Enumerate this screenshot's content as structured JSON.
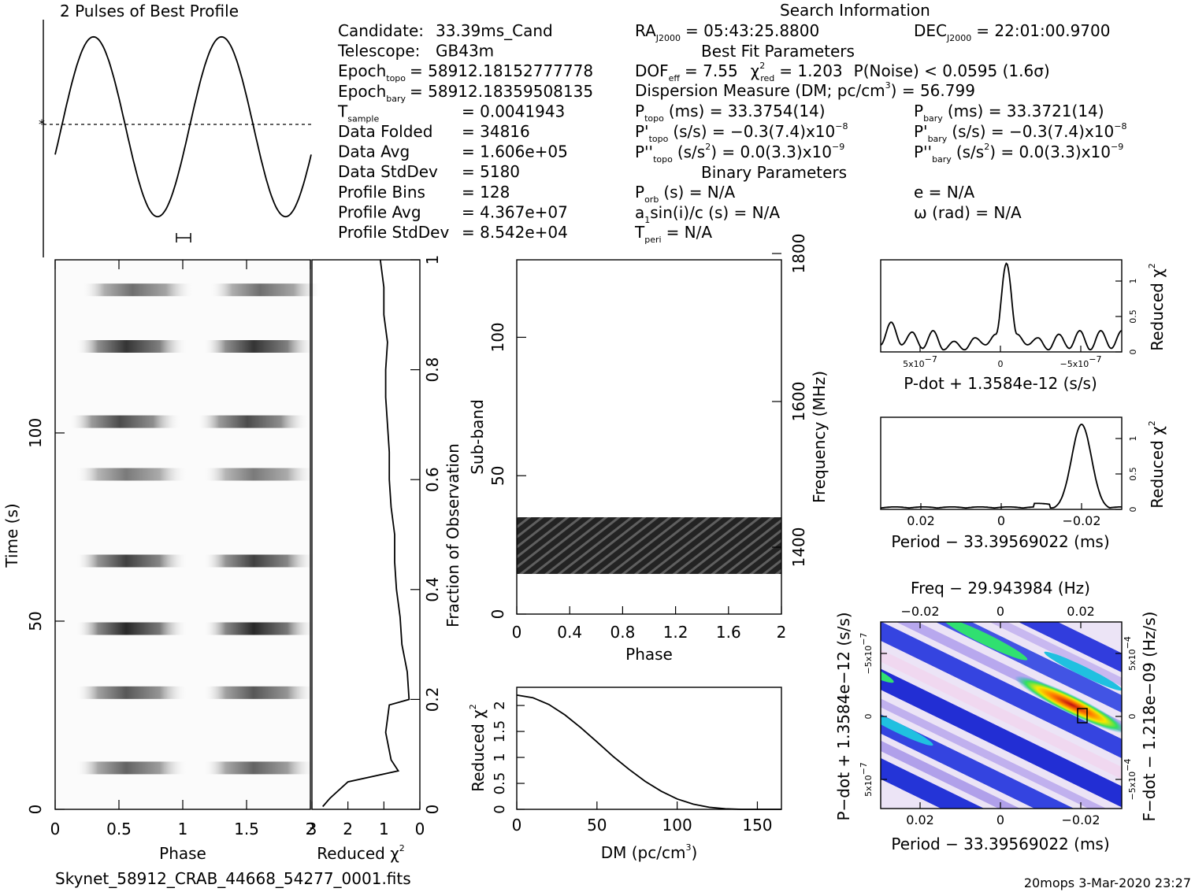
{
  "header": {
    "profile_title": "2 Pulses of Best Profile",
    "search_title": "Search Information",
    "best_fit_title": "Best Fit Parameters",
    "binary_title": "Binary Parameters",
    "filename": "Skynet_58912_CRAB_44668_54277_0001.fits",
    "footer": "20mops   3-Mar-2020 23:27"
  },
  "info_left": [
    {
      "label": "Candidate:",
      "value": "33.39ms_Cand"
    },
    {
      "label": "Telescope:",
      "value": "GB43m"
    },
    {
      "label": "Epoch",
      "sub": "topo",
      "value": "= 58912.18152777778"
    },
    {
      "label": "Epoch",
      "sub": "bary",
      "value": "= 58912.18359508135"
    },
    {
      "label": "T",
      "sub": "sample",
      "value": "=   0.0041943"
    },
    {
      "label": "Data Folded",
      "value": "=   34816"
    },
    {
      "label": "Data Avg",
      "value": "=   1.606e+05"
    },
    {
      "label": "Data StdDev",
      "value": "=   5180"
    },
    {
      "label": "Profile Bins",
      "value": "=   128"
    },
    {
      "label": "Profile Avg",
      "value": "=   4.367e+07"
    },
    {
      "label": "Profile StdDev",
      "value": "=   8.542e+04"
    }
  ],
  "info_mid": {
    "ra": {
      "label": "RA",
      "sub": "J2000",
      "value": "= 05:43:25.8800"
    },
    "dof": {
      "label": "DOF",
      "sub": "eff",
      "value": "= 7.55"
    },
    "chi": {
      "label": "χ",
      "sup": "2",
      "sub": "red",
      "value": "= 1.203"
    },
    "pnoise": "P(Noise) < 0.0595   (1.6σ)",
    "dm_line": "Dispersion Measure (DM; pc/cm",
    "dm_sup": "3",
    "dm_value": ") = 56.799",
    "ptopo": {
      "label": "P",
      "sub": "topo",
      "value": "(ms) =  33.3754(14)"
    },
    "pdtopo": {
      "label": "P'",
      "sub": "topo",
      "value": "(s/s) = −0.3(7.4)x10",
      "exp": "−8"
    },
    "pddtopo": {
      "label": "P''",
      "sub": "topo",
      "value": "(s/s",
      "sup2": "2",
      "value2": ") = 0.0(3.3)x10",
      "exp": "−9"
    },
    "porb": {
      "label": "P",
      "sub": "orb",
      "value": "(s) = N/A"
    },
    "asini": {
      "label": "a",
      "sub": "1",
      "value": "sin(i)/c (s) = N/A"
    },
    "tperi": {
      "label": "T",
      "sub": "peri",
      "value": "= N/A"
    }
  },
  "info_right": {
    "dec": {
      "label": "DEC",
      "sub": "J2000",
      "value": "= 22:01:00.9700"
    },
    "pbary": {
      "label": "P",
      "sub": "bary",
      "value": "(ms) =  33.3721(14)"
    },
    "pdbary": {
      "label": "P'",
      "sub": "bary",
      "value": "(s/s) = −0.3(7.4)x10",
      "exp": "−8"
    },
    "pddbary": {
      "label": "P''",
      "sub": "bary",
      "value": "(s/s",
      "sup2": "2",
      "value2": ") = 0.0(3.3)x10",
      "exp": "−9"
    },
    "ecc": "e = N/A",
    "omega": "ω (rad) = N/A"
  },
  "chart_data": [
    {
      "id": "profile",
      "type": "line",
      "title": "2 Pulses of Best Profile",
      "x": [
        0,
        0.125,
        0.25,
        0.375,
        0.5,
        0.625,
        0.75,
        0.875,
        1.0,
        1.125,
        1.25,
        1.375,
        1.5,
        1.625,
        1.75,
        1.875,
        2.0
      ],
      "y": [
        0.78,
        0.95,
        1.0,
        0.91,
        0.6,
        0.28,
        0.07,
        0.02,
        0.29,
        0.78,
        0.97,
        0.92,
        0.61,
        0.26,
        0.06,
        0.07,
        0.58
      ],
      "baseline": 0.58
    },
    {
      "id": "time-phase",
      "type": "heatmap",
      "xlabel": "Phase",
      "ylabel": "Time (s)",
      "xticks": [
        "0",
        "0.5",
        "1",
        "1.5",
        "2"
      ],
      "yticks": [
        "0",
        "50",
        "100"
      ],
      "xlim": [
        0,
        2
      ],
      "ylim": [
        0,
        146
      ],
      "bands": [
        {
          "t": 138,
          "strength": 0.6,
          "phase": 0.65
        },
        {
          "t": 123,
          "strength": 0.85,
          "phase": 0.6
        },
        {
          "t": 103,
          "strength": 0.75,
          "phase": 0.55
        },
        {
          "t": 89,
          "strength": 0.55,
          "phase": 0.6
        },
        {
          "t": 66,
          "strength": 0.8,
          "phase": 0.6
        },
        {
          "t": 48,
          "strength": 0.9,
          "phase": 0.6
        },
        {
          "t": 31,
          "strength": 0.7,
          "phase": 0.6
        },
        {
          "t": 11,
          "strength": 0.65,
          "phase": 0.6
        }
      ]
    },
    {
      "id": "reduced-chi-time",
      "type": "line",
      "xlabel": "Reduced χ",
      "ylabel": "Fraction of Observation",
      "xticks": [
        "3",
        "2",
        "1",
        "0"
      ],
      "yticks": [
        "0",
        "0.2",
        "0.4",
        "0.6",
        "0.8",
        "1"
      ],
      "xlim": [
        3,
        0
      ],
      "ylim": [
        0,
        1
      ],
      "points": [
        [
          2.7,
          0.005
        ],
        [
          2.5,
          0.02
        ],
        [
          2.0,
          0.05
        ],
        [
          0.6,
          0.07
        ],
        [
          0.8,
          0.09
        ],
        [
          0.95,
          0.14
        ],
        [
          0.85,
          0.19
        ],
        [
          0.3,
          0.2
        ],
        [
          0.35,
          0.25
        ],
        [
          0.5,
          0.3
        ],
        [
          0.55,
          0.35
        ],
        [
          0.65,
          0.4
        ],
        [
          0.7,
          0.45
        ],
        [
          0.7,
          0.5
        ],
        [
          0.8,
          0.55
        ],
        [
          0.85,
          0.6
        ],
        [
          0.85,
          0.65
        ],
        [
          0.9,
          0.7
        ],
        [
          0.95,
          0.75
        ],
        [
          0.95,
          0.8
        ],
        [
          0.9,
          0.85
        ],
        [
          1.0,
          0.9
        ],
        [
          1.0,
          0.95
        ],
        [
          1.1,
          1.0
        ]
      ]
    },
    {
      "id": "subband-phase",
      "type": "heatmap",
      "xlabel": "Phase",
      "ylabel": "Sub-band",
      "y2label": "Frequency (MHz)",
      "xticks": [
        "0",
        "0.4",
        "0.8",
        "1.2",
        "1.6",
        "2"
      ],
      "yticks": [
        "0",
        "50",
        "100"
      ],
      "y2ticks": [
        "1400",
        "1600",
        "1800"
      ],
      "xlim": [
        0,
        2
      ],
      "ylim": [
        0,
        128
      ],
      "band_range": [
        14,
        35
      ]
    },
    {
      "id": "dm-chi",
      "type": "line",
      "xlabel": "DM (pc/cm",
      "xlabel_sup": "3",
      "ylabel": "Reduced χ",
      "xticks": [
        "0",
        "50",
        "100",
        "150"
      ],
      "yticks": [
        "0",
        "0.5",
        "1",
        "1.5",
        "2"
      ],
      "xlim": [
        0,
        165
      ],
      "ylim": [
        0,
        2.35
      ],
      "x": [
        0,
        10,
        20,
        30,
        40,
        50,
        60,
        70,
        80,
        90,
        100,
        110,
        120,
        130,
        140,
        150,
        160,
        165
      ],
      "y": [
        2.2,
        2.15,
        2.02,
        1.82,
        1.57,
        1.3,
        1.02,
        0.77,
        0.54,
        0.35,
        0.2,
        0.1,
        0.04,
        0.01,
        0.0,
        0.0,
        0.0,
        0.0
      ]
    },
    {
      "id": "pdot-chi",
      "type": "line",
      "xlabel": "P-dot + 1.3584e-12 (s/s)",
      "ylabel": "Reduced χ",
      "xticks": [
        "5x10",
        "0",
        "−5x10"
      ],
      "xtick_exp": "−7",
      "yticks": [
        "0",
        "0.5",
        "1"
      ],
      "ylim": [
        0,
        1.3
      ],
      "y": [
        0.1,
        0.42,
        0.1,
        0.28,
        0.05,
        0.3,
        0.03,
        0.15,
        0.03,
        0.2,
        0.1,
        0.25,
        1.25,
        0.25,
        0.1,
        0.2,
        0.03,
        0.25,
        0.05,
        0.3,
        0.03,
        0.3,
        0.05,
        0.3
      ]
    },
    {
      "id": "period-chi",
      "type": "line",
      "xlabel": "Period − 33.39569022 (ms)",
      "ylabel": "Reduced χ",
      "xticks": [
        "0.02",
        "0",
        "−0.02"
      ],
      "yticks": [
        "0",
        "0.5",
        "1"
      ],
      "ylim": [
        0,
        1.3
      ],
      "x": [
        0.03,
        0.025,
        0.02,
        0.015,
        0.01,
        0.005,
        0,
        -0.005,
        -0.008,
        -0.012,
        -0.016,
        -0.02,
        -0.024,
        -0.028,
        -0.03
      ],
      "y": [
        0.02,
        0.05,
        0.02,
        0.05,
        0.03,
        0.02,
        0.01,
        0.02,
        0.08,
        0.05,
        0.5,
        1.2,
        0.55,
        0.05,
        0.02
      ]
    },
    {
      "id": "pdot-period",
      "type": "heatmap",
      "title": "Freq − 29.943984 (Hz)",
      "xlabel": "Period − 33.39569022 (ms)",
      "ylabel": "P−dot + 1.3584e−12 (s/s)",
      "y2label": "F−dot − 1.218e−09 (Hz/s)",
      "xticks": [
        "0.02",
        "0",
        "−0.02"
      ],
      "x2ticks": [
        "−0.02",
        "0",
        "0.02"
      ],
      "yticks": [
        "−5x10",
        "0",
        "5x10"
      ],
      "ytick_exp": "−7",
      "y2ticks": [
        "5x10",
        "0",
        "−5x10"
      ],
      "y2tick_exp": "−4"
    }
  ]
}
